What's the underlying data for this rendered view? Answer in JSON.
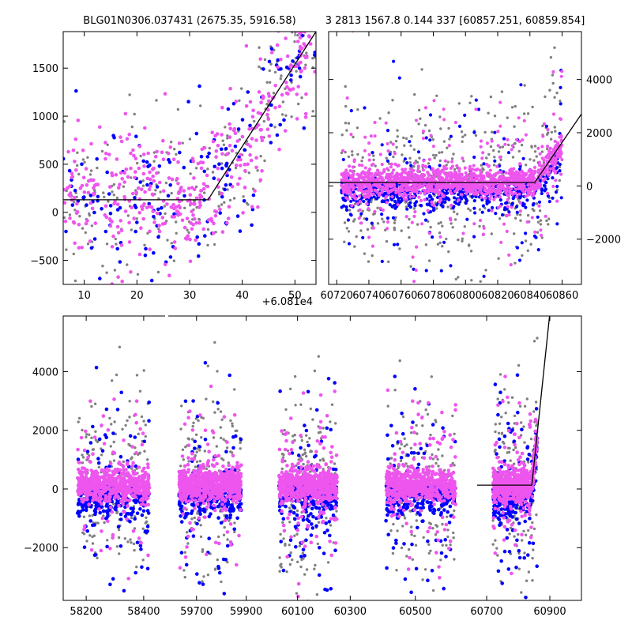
{
  "colors": {
    "grey": "#808080",
    "blue": "#0000ff",
    "magenta": "#ee55ee",
    "fit_line": "#000000",
    "frame": "#000000"
  },
  "titles": {
    "left": "BLG01N0306.037431 (2675.35, 5916.58)",
    "right": "3 2813 1567.8 0.144 337 [60857.251, 60859.854]"
  },
  "offset_label": "+6.081e4",
  "chart_data": [
    {
      "type": "scatter",
      "panel": "top-left",
      "title": "BLG01N0306.037431 (2675.35, 5916.58)",
      "x_offset": 60810,
      "xlim": [
        6,
        54
      ],
      "ylim": [
        -750,
        1880
      ],
      "x_ticks": [
        10,
        20,
        30,
        40,
        50
      ],
      "x_tick_labels": [
        "10",
        "20",
        "30",
        "40",
        "50"
      ],
      "y_ticks": [
        -500,
        0,
        500,
        1000,
        1500
      ],
      "y_tick_labels": [
        "−500",
        "0",
        "500",
        "1000",
        "1500"
      ],
      "y_axis_side": "left",
      "series": [
        {
          "color": "grey",
          "n": 240,
          "segments": [
            [
              6,
              54
            ]
          ]
        },
        {
          "color": "blue",
          "n": 170,
          "segments": [
            [
              6,
              54
            ]
          ]
        },
        {
          "color": "magenta",
          "n": 420,
          "segments": [
            [
              6,
              54
            ]
          ]
        }
      ],
      "fit_line": {
        "x": [
          6,
          33.5,
          54
        ],
        "y": [
          130,
          130,
          1880
        ]
      }
    },
    {
      "type": "scatter",
      "panel": "top-right",
      "title": "3 2813 1567.8 0.144 337 [60857.251, 60859.854]",
      "xlim": [
        60715,
        60872
      ],
      "ylim": [
        -3700,
        5800
      ],
      "x_ticks": [
        60720,
        60740,
        60760,
        60780,
        60800,
        60820,
        60840,
        60860
      ],
      "x_tick_labels": [
        "60720",
        "60740",
        "60760",
        "60780",
        "60800",
        "60820",
        "60840",
        "60860"
      ],
      "y_ticks": [
        -2000,
        0,
        2000,
        4000
      ],
      "y_tick_labels": [
        "−2000",
        "0",
        "2000",
        "4000"
      ],
      "y_axis_side": "right",
      "series": [
        {
          "color": "grey",
          "n": 450,
          "segments": [
            [
              60723,
              60860
            ]
          ]
        },
        {
          "color": "blue",
          "n": 700,
          "segments": [
            [
              60723,
              60860
            ]
          ]
        },
        {
          "color": "magenta",
          "n": 1400,
          "segments": [
            [
              60723,
              60860
            ]
          ]
        }
      ],
      "fit_line": {
        "x": [
          60715,
          60843,
          60872
        ],
        "y": [
          130,
          130,
          2700
        ]
      }
    },
    {
      "type": "scatter",
      "panel": "bottom",
      "xlim_segments": [
        [
          58120,
          58480
        ],
        [
          59580,
          59990
        ],
        [
          59990,
          60380
        ],
        [
          60380,
          60660
        ],
        [
          60660,
          61000
        ]
      ],
      "ylim": [
        -3800,
        5900
      ],
      "x_ticks": [
        58200,
        58400,
        59700,
        59900,
        60100,
        60300,
        60500,
        60700,
        60900
      ],
      "x_tick_labels": [
        "58200",
        "58400",
        "59700",
        "59900",
        "60100",
        "60300",
        "60500",
        "60700",
        "60900"
      ],
      "y_ticks": [
        -2000,
        0,
        2000,
        4000
      ],
      "y_tick_labels": [
        "−2000",
        "0",
        "2000",
        "4000"
      ],
      "y_axis_side": "left",
      "series": [
        {
          "color": "grey",
          "n": 900,
          "segments": [
            [
              58170,
              58420
            ],
            [
              59630,
              59880
            ],
            [
              60030,
              60250
            ],
            [
              60420,
              60610
            ],
            [
              60720,
              60860
            ]
          ]
        },
        {
          "color": "blue",
          "n": 1800,
          "segments": [
            [
              58170,
              58420
            ],
            [
              59630,
              59880
            ],
            [
              60030,
              60250
            ],
            [
              60420,
              60610
            ],
            [
              60720,
              60860
            ]
          ]
        },
        {
          "color": "magenta",
          "n": 3200,
          "segments": [
            [
              58170,
              58420
            ],
            [
              59630,
              59880
            ],
            [
              60030,
              60250
            ],
            [
              60420,
              60610
            ],
            [
              60720,
              60860
            ]
          ]
        }
      ],
      "fit_line": {
        "x": [
          60670,
          60843,
          60900
        ],
        "y": [
          130,
          130,
          6000
        ]
      }
    }
  ]
}
